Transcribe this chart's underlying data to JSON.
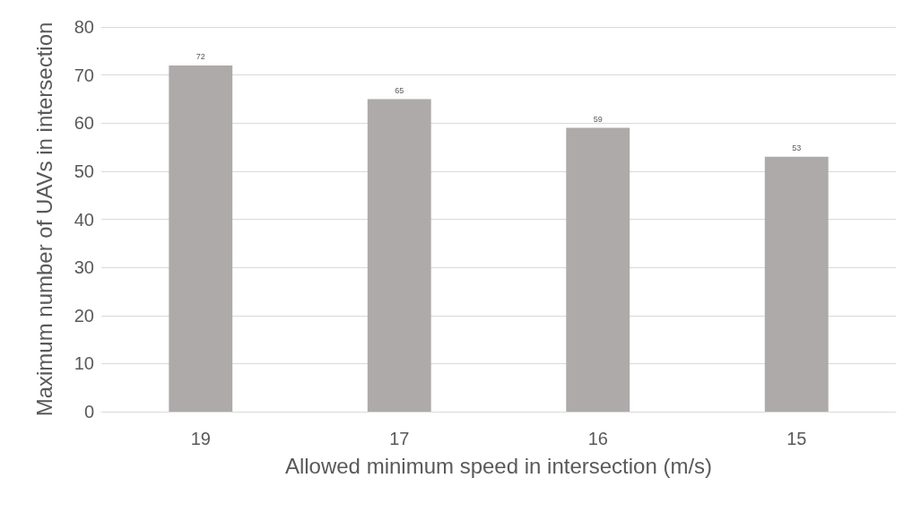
{
  "chart_data": {
    "type": "bar",
    "xlabel": "Allowed minimum speed in intersection (m/s)",
    "ylabel": "Maximum number of UAVs in intersection",
    "categories": [
      "19",
      "17",
      "16",
      "15"
    ],
    "values": [
      72,
      65,
      59,
      53
    ],
    "color": "#aeaaaa",
    "ylim": [
      0,
      80
    ],
    "yticks": [
      0,
      10,
      20,
      30,
      40,
      50,
      60,
      70,
      80
    ],
    "grid": "y",
    "data_labels": true
  }
}
